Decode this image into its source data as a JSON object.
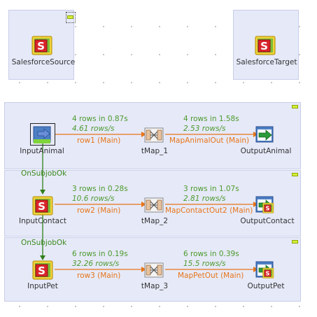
{
  "components": {
    "source": "SalesforceSource",
    "target": "SalesforceTarget"
  },
  "subjobs": [
    {
      "input": "InputAnimal",
      "map": "tMap_1",
      "output": "OutputAnimal",
      "in_rows": "4 rows in 0.87s",
      "in_rate": "4.61 rows/s",
      "in_link": "row1 (Main)",
      "out_rows": "4 rows in 1.58s",
      "out_rate": "2.53 rows/s",
      "out_link": "MapAnimalOut (Main)"
    },
    {
      "input": "InputContact",
      "map": "tMap_2",
      "output": "OutputContact",
      "in_rows": "3 rows in 0.28s",
      "in_rate": "10.6 rows/s",
      "in_link": "row2 (Main)",
      "out_rows": "3 rows in 1.07s",
      "out_rate": "2.81 rows/s",
      "out_link": "MapContactOut2 (Main)"
    },
    {
      "input": "InputPet",
      "map": "tMap_3",
      "output": "OutputPet",
      "in_rows": "6 rows in 0.19s",
      "in_rate": "32.26 rows/s",
      "in_link": "row3 (Main)",
      "out_rows": "6 rows in 0.39s",
      "out_rate": "15.5 rows/s",
      "out_link": "MapPetOut (Main)"
    }
  ],
  "triggers": [
    "OnSubjobOk",
    "OnSubjobOk"
  ],
  "icons": {
    "salesforce": "salesforce-s-icon",
    "map": "tmap-icon",
    "output": "output-arrow-icon",
    "input": "input-arrow-icon"
  },
  "colors": {
    "subjob_bg": "#e6e9f8",
    "stat_green": "#4b9a2c",
    "link_orange": "#e67519",
    "trigger_green": "#3a8a1e"
  }
}
